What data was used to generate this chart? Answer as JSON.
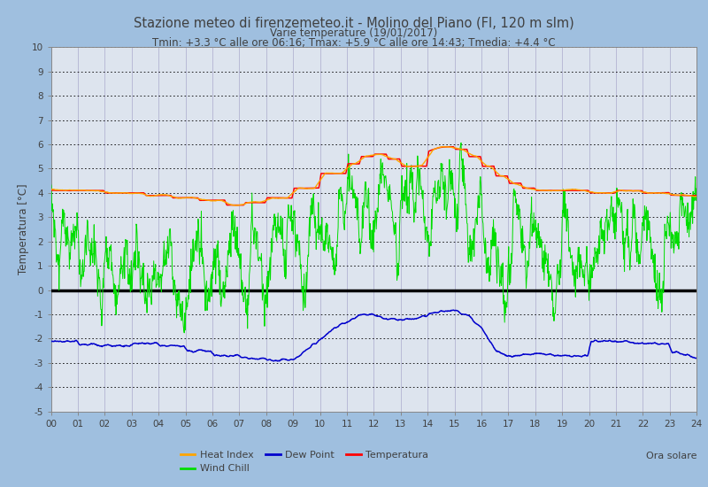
{
  "title1": "Stazione meteo di firenzemeteo.it - Molino del Piano (FI, 120 m slm)",
  "title2": "Varie temperature (19/01/2017)",
  "title3": "Tmin: +3.3 °C alle ore 06:16; Tmax: +5.9 °C alle ore 14:43; Tmedia: +4.4 °C",
  "xlabel": "Ora solare",
  "ylabel": "Temperatura [°C]",
  "ylim": [
    -5,
    10
  ],
  "yticks": [
    -5,
    -4,
    -3,
    -2,
    -1,
    0,
    1,
    2,
    3,
    4,
    5,
    6,
    7,
    8,
    9,
    10
  ],
  "xlim": [
    0,
    24
  ],
  "xticks": [
    0,
    1,
    2,
    3,
    4,
    5,
    6,
    7,
    8,
    9,
    10,
    11,
    12,
    13,
    14,
    15,
    16,
    17,
    18,
    19,
    20,
    21,
    22,
    23,
    24
  ],
  "xticklabels": [
    "00",
    "01",
    "02",
    "03",
    "04",
    "05",
    "06",
    "07",
    "08",
    "09",
    "10",
    "11",
    "12",
    "13",
    "14",
    "15",
    "16",
    "17",
    "18",
    "19",
    "20",
    "21",
    "22",
    "23",
    "24"
  ],
  "bg_color": "#9fbfdf",
  "plot_bg_color": "#dde4ee",
  "grid_h_color": "#000000",
  "grid_v_color": "#aaaacc",
  "zero_line_color": "#000000",
  "temp_color": "#ff0000",
  "wind_chill_color": "#00dd00",
  "heat_index_color": "#ffa500",
  "dew_point_color": "#0000cc",
  "title_color": "#404040",
  "legend_entries": [
    "Heat Index",
    "Wind Chill",
    "Dew Point",
    "Temperatura"
  ]
}
